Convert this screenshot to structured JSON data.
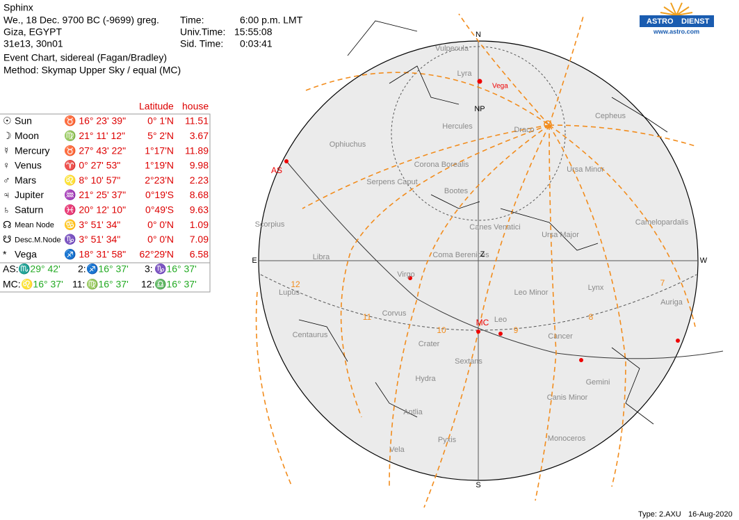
{
  "header": {
    "title": "Sphinx",
    "date": "We., 18 Dec. 9700 BC (-9699) greg.",
    "place": "Giza, EGYPT",
    "coords": "31e13, 30n01",
    "event": "Event Chart, sidereal (Fagan/Bradley)",
    "method": "Method: Skymap Upper Sky / equal (MC)"
  },
  "times": {
    "labels": [
      "Time:",
      "Univ.Time:",
      "Sid. Time:"
    ],
    "values": [
      "6:00 p.m. LMT",
      "15:55:08",
      "0:03:41"
    ]
  },
  "table": {
    "headers": [
      "Latitude",
      "house"
    ],
    "rows": [
      {
        "symbol": "☉",
        "name": "Sun",
        "position": "♉ 16° 23' 39\"",
        "latitude": "0°  1'N",
        "house": "11.51"
      },
      {
        "symbol": "☽",
        "name": "Moon",
        "position": "♍ 21° 11' 12\"",
        "latitude": "5°  2'N",
        "house": "3.67"
      },
      {
        "symbol": "☿",
        "name": "Mercury",
        "position": "♉ 27° 43' 22\"",
        "latitude": "1°17'N",
        "house": "11.89"
      },
      {
        "symbol": "♀",
        "name": "Venus",
        "position": "♈  0° 27' 53\"",
        "latitude": "1°19'N",
        "house": "9.98"
      },
      {
        "symbol": "♂",
        "name": "Mars",
        "position": "♌  8° 10' 57\"",
        "latitude": "2°23'N",
        "house": "2.23"
      },
      {
        "symbol": "♃",
        "name": "Jupiter",
        "position": "♒ 21° 25' 37\"",
        "latitude": "0°19'S",
        "house": "8.68"
      },
      {
        "symbol": "♄",
        "name": "Saturn",
        "position": "♓ 20° 12' 10\"",
        "latitude": "0°49'S",
        "house": "9.63"
      },
      {
        "symbol": "☊",
        "name": "Mean Node",
        "position": "♋  3° 51' 34\"",
        "latitude": "0°  0'N",
        "house": "1.09"
      },
      {
        "symbol": "☋",
        "name": "Desc.M.Node",
        "position": "♑  3° 51' 34\"",
        "latitude": "0°  0'N",
        "house": "7.09"
      },
      {
        "symbol": "*",
        "name": "Vega",
        "position": "♐ 18° 31' 58\"",
        "latitude": "62°29'N",
        "house": "6.58"
      }
    ]
  },
  "cusps": [
    {
      "label": "AS:",
      "value": "♏29° 42'"
    },
    {
      "label": "2:",
      "value": "♐16° 37'"
    },
    {
      "label": "3:",
      "value": "♑16° 37'"
    },
    {
      "label": "MC:",
      "value": "♌16° 37'"
    },
    {
      "label": "11:",
      "value": "♍16° 37'"
    },
    {
      "label": "12:",
      "value": "♎16° 37'"
    }
  ],
  "map": {
    "cardinals": [
      "N",
      "NP",
      "E",
      "Z",
      "W",
      "S"
    ],
    "points": [
      "AS",
      "MC"
    ],
    "star": "Vega",
    "houses": [
      "12",
      "11",
      "10",
      "9",
      "8",
      "7"
    ],
    "constellations": [
      "Vulpecula",
      "Lyra",
      "Hercules",
      "Cepheus",
      "Draco",
      "Ophiuchus",
      "Corona Borealis",
      "Ursa Minor",
      "Serpens Caput",
      "Bootes",
      "Scorpius",
      "Canes Venatici",
      "Camelopardalis",
      "Ursa Major",
      "Libra",
      "Coma Berenices",
      "Virgo",
      "Lupus",
      "Leo Minor",
      "Lynx",
      "Corvus",
      "Auriga",
      "Leo",
      "Centaurus",
      "Cancer",
      "Crater",
      "Sextans",
      "Gemini",
      "Hydra",
      "Canis Minor",
      "Antlia",
      "Pyxis",
      "Monoceros",
      "Vela"
    ]
  },
  "logo": {
    "brand1": "ASTRO",
    "brand2": "DIENST",
    "url": "www.astro.com"
  },
  "footer": {
    "type": "Type: 2.AXU",
    "date": "16-Aug-2020"
  }
}
